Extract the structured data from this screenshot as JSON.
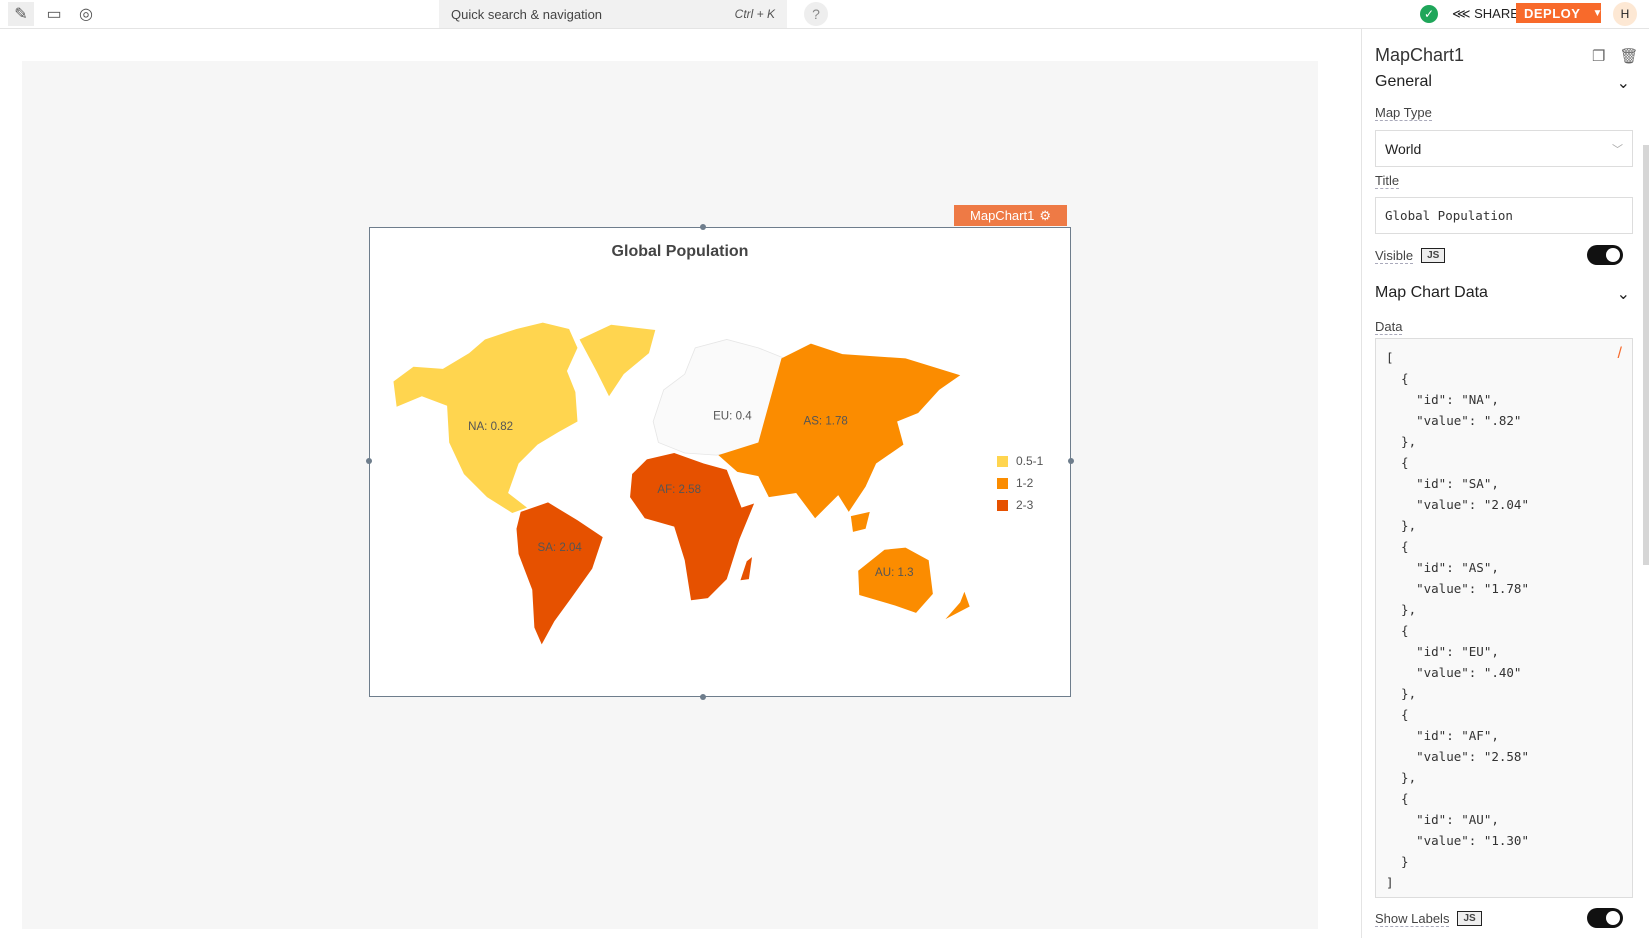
{
  "topbar": {
    "icons": [
      "pencil-icon",
      "comment-icon",
      "eye-icon"
    ],
    "search_placeholder": "Quick search & navigation",
    "search_shortcut": "Ctrl + K",
    "help": "?",
    "share_label": "SHARE",
    "deploy_label": "DEPLOY",
    "avatar_initial": "H"
  },
  "widget": {
    "name": "MapChart1",
    "title": "Global Population",
    "labels": {
      "NA": "NA: 0.82",
      "SA": "SA: 2.04",
      "AS": "AS: 1.78",
      "EU": "EU: 0.4",
      "AF": "AF: 2.58",
      "AU": "AU: 1.3"
    }
  },
  "chart_data": {
    "type": "choropleth-map",
    "map_type": "World",
    "title": "Global Population",
    "regions": [
      {
        "id": "NA",
        "value": 0.82
      },
      {
        "id": "SA",
        "value": 2.04
      },
      {
        "id": "AS",
        "value": 1.78
      },
      {
        "id": "EU",
        "value": 0.4
      },
      {
        "id": "AF",
        "value": 2.58
      },
      {
        "id": "AU",
        "value": 1.3
      }
    ],
    "legend": [
      {
        "label": "0.5-1",
        "color": "#FFD54F"
      },
      {
        "label": "1-2",
        "color": "#FB8C00"
      },
      {
        "label": "2-3",
        "color": "#E65100"
      }
    ],
    "legend_position": "right",
    "no_data_color": "#FAFAFA"
  },
  "panel": {
    "title": "MapChart1",
    "general": "General",
    "map_type_label": "Map Type",
    "map_type_value": "World",
    "title_label": "Title",
    "title_value": "Global Population",
    "visible_label": "Visible",
    "js": "JS",
    "map_chart_data": "Map Chart Data",
    "data_label": "Data",
    "data_text": "[\n  {\n    \"id\": \"NA\",\n    \"value\": \".82\"\n  },\n  {\n    \"id\": \"SA\",\n    \"value\": \"2.04\"\n  },\n  {\n    \"id\": \"AS\",\n    \"value\": \"1.78\"\n  },\n  {\n    \"id\": \"EU\",\n    \"value\": \".40\"\n  },\n  {\n    \"id\": \"AF\",\n    \"value\": \"2.58\"\n  },\n  {\n    \"id\": \"AU\",\n    \"value\": \"1.30\"\n  }\n]",
    "show_labels_label": "Show Labels",
    "visible_on": true,
    "show_labels_on": true
  }
}
